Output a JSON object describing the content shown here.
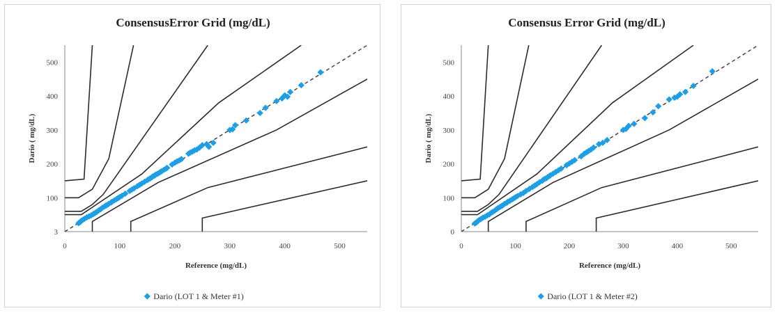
{
  "chart_data": [
    {
      "type": "scatter",
      "title": "ConsensusError Grid (mg/dL)",
      "xlabel": "Reference (mg/dL)",
      "ylabel": "Dario ( mg/dL)",
      "xlim": [
        0,
        550
      ],
      "ylim": [
        0,
        550
      ],
      "xticks": [
        "0",
        "100",
        "200",
        "300",
        "400",
        "500"
      ],
      "yticks": [
        "3",
        "100",
        "200",
        "300",
        "400",
        "500"
      ],
      "legend": {
        "label": "Dario (LOT 1 & Meter #1)",
        "position": "bottom"
      },
      "grid": false,
      "colors": {
        "points": "#1f9ee3",
        "zones": "#2b2b2b",
        "identity": "#3a3a3a"
      },
      "series": [
        {
          "name": "Dario (LOT 1 & Meter #1)",
          "x": [
            25,
            28,
            30,
            33,
            36,
            40,
            44,
            48,
            52,
            55,
            58,
            62,
            65,
            68,
            72,
            75,
            78,
            80,
            84,
            86,
            90,
            94,
            97,
            100,
            104,
            110,
            118,
            122,
            126,
            132,
            136,
            140,
            145,
            150,
            152,
            155,
            158,
            160,
            163,
            165,
            168,
            170,
            173,
            176,
            180,
            184,
            186,
            195,
            200,
            204,
            208,
            212,
            225,
            228,
            232,
            236,
            240,
            245,
            250,
            258,
            262,
            270,
            300,
            305,
            310,
            330,
            355,
            365,
            385,
            395,
            400,
            405,
            410,
            430,
            465
          ],
          "y": [
            25,
            28,
            32,
            35,
            38,
            42,
            45,
            48,
            52,
            55,
            58,
            63,
            66,
            70,
            74,
            77,
            80,
            82,
            86,
            88,
            92,
            96,
            99,
            102,
            106,
            112,
            120,
            124,
            128,
            134,
            138,
            142,
            147,
            152,
            154,
            157,
            160,
            163,
            165,
            168,
            170,
            172,
            175,
            178,
            182,
            186,
            188,
            198,
            203,
            207,
            210,
            214,
            230,
            233,
            236,
            240,
            242,
            248,
            255,
            258,
            250,
            262,
            300,
            302,
            314,
            328,
            350,
            365,
            385,
            393,
            402,
            398,
            412,
            432,
            470
          ]
        }
      ]
    },
    {
      "type": "scatter",
      "title": "Consensus Error Grid (mg/dL)",
      "xlabel": "Reference (mg/dL)",
      "ylabel": "Dario ( mg/dL)",
      "xlim": [
        0,
        550
      ],
      "ylim": [
        0,
        550
      ],
      "xticks": [
        "0",
        "100",
        "200",
        "300",
        "400",
        "500"
      ],
      "yticks": [
        "0",
        "100",
        "200",
        "300",
        "400",
        "500"
      ],
      "legend": {
        "label": "Dario (LOT 1 & Meter #2)",
        "position": "bottom"
      },
      "grid": false,
      "colors": {
        "points": "#1f9ee3",
        "zones": "#2b2b2b",
        "identity": "#3a3a3a"
      },
      "series": [
        {
          "name": "Dario (LOT 1 & Meter #2)",
          "x": [
            25,
            28,
            30,
            33,
            36,
            40,
            44,
            48,
            52,
            55,
            58,
            62,
            65,
            68,
            72,
            75,
            78,
            80,
            84,
            86,
            90,
            94,
            97,
            100,
            104,
            110,
            115,
            120,
            126,
            132,
            136,
            140,
            145,
            150,
            152,
            155,
            158,
            160,
            163,
            165,
            170,
            175,
            180,
            185,
            195,
            200,
            205,
            210,
            222,
            228,
            232,
            236,
            240,
            245,
            255,
            262,
            270,
            300,
            305,
            310,
            320,
            340,
            355,
            365,
            385,
            395,
            400,
            405,
            415,
            430,
            465
          ],
          "y": [
            24,
            27,
            30,
            34,
            37,
            41,
            44,
            48,
            51,
            55,
            58,
            62,
            66,
            69,
            73,
            76,
            79,
            82,
            85,
            88,
            91,
            95,
            98,
            101,
            105,
            110,
            114,
            120,
            126,
            132,
            136,
            140,
            146,
            150,
            153,
            156,
            158,
            161,
            164,
            166,
            171,
            176,
            181,
            186,
            196,
            201,
            206,
            211,
            222,
            230,
            234,
            238,
            242,
            248,
            258,
            262,
            270,
            300,
            303,
            312,
            318,
            335,
            352,
            370,
            390,
            395,
            398,
            405,
            412,
            430,
            473
          ]
        }
      ]
    }
  ]
}
